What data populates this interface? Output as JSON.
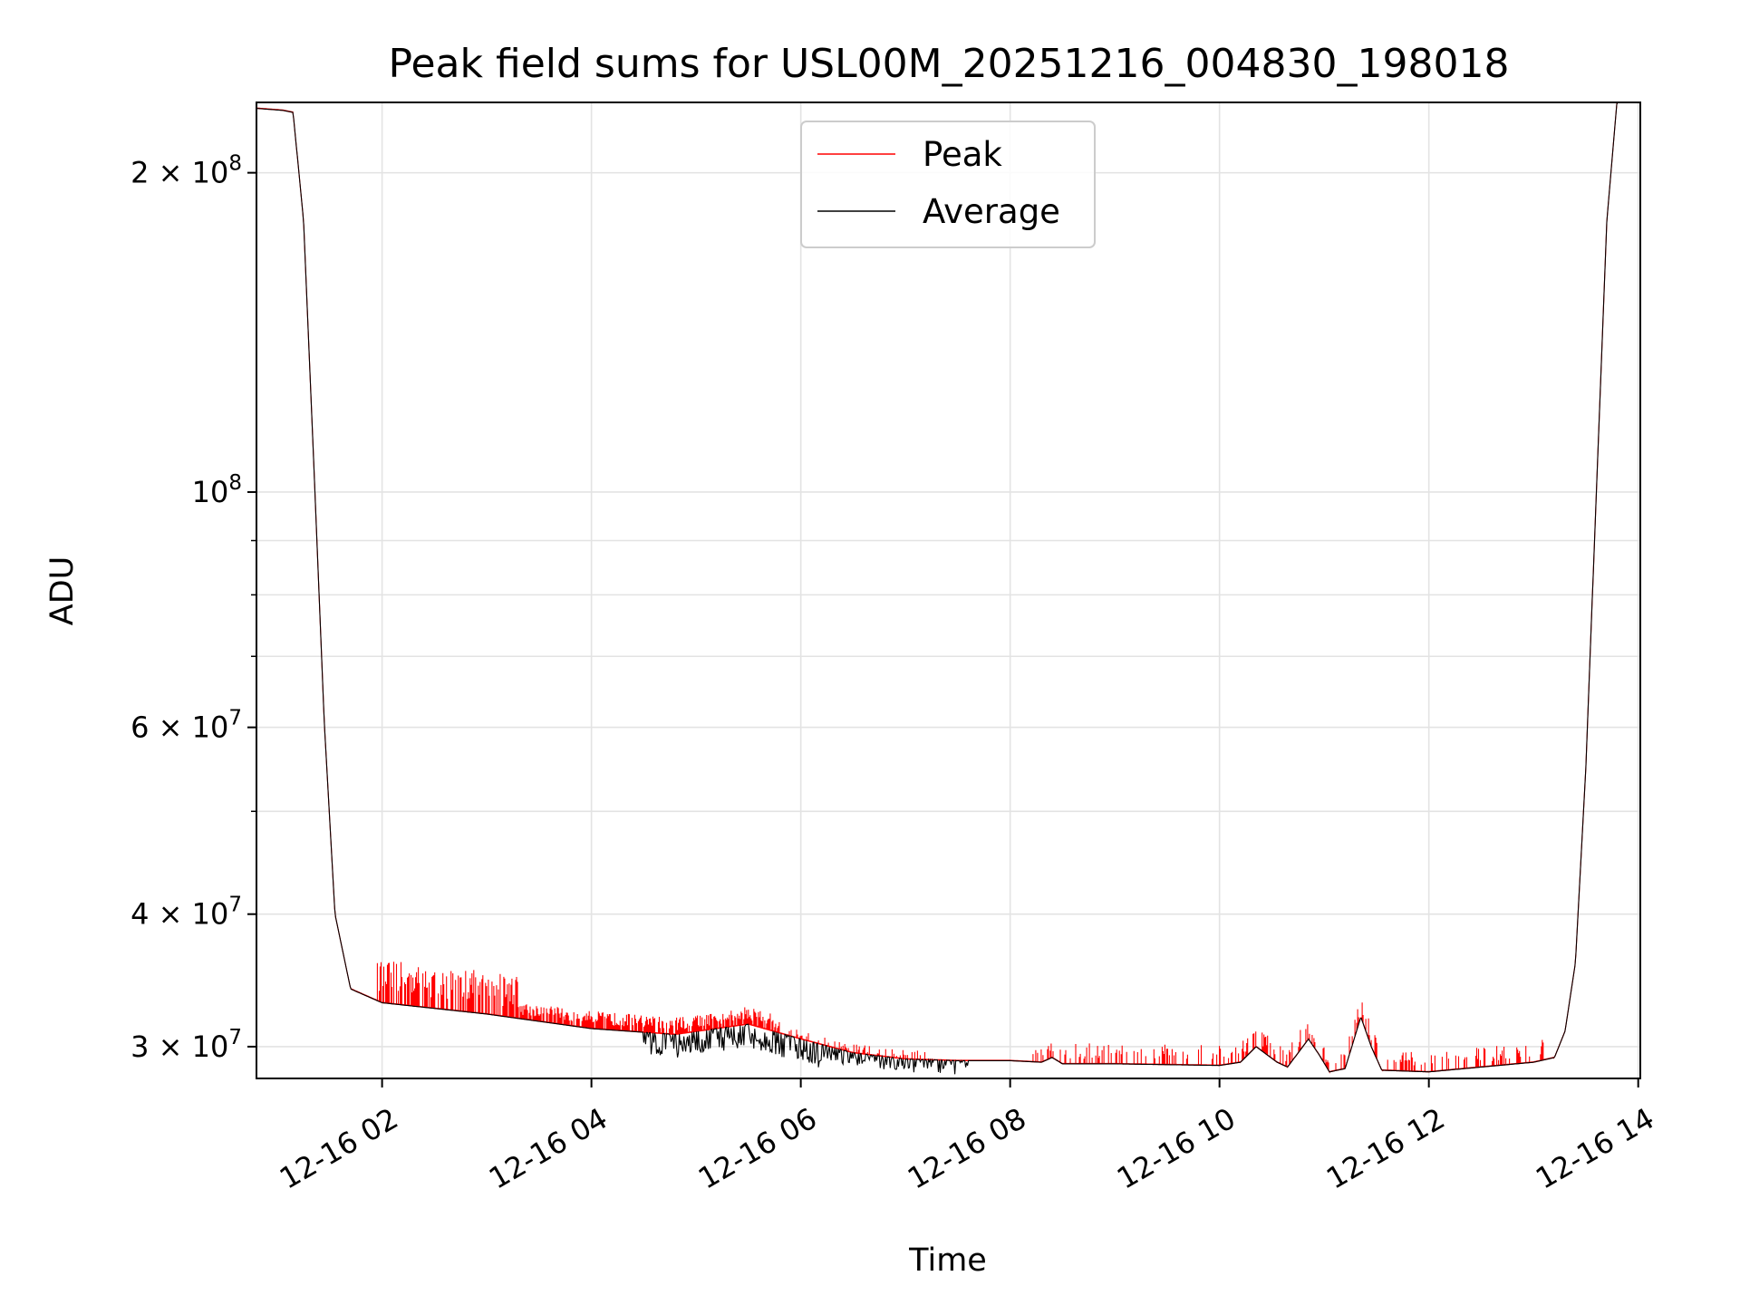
{
  "chart_data": {
    "type": "line",
    "title": "Peak field sums for USL00M_20251216_004830_198018",
    "xlabel": "Time",
    "ylabel": "ADU",
    "yscale": "log",
    "xlim_hours": [
      0.8,
      14.02
    ],
    "ylim": [
      28000000,
      233000000
    ],
    "grid": true,
    "legend_position": "top-center",
    "x_tick_labels": [
      {
        "hour": 2,
        "label": "12-16 02"
      },
      {
        "hour": 4,
        "label": "12-16 04"
      },
      {
        "hour": 6,
        "label": "12-16 06"
      },
      {
        "hour": 8,
        "label": "12-16 08"
      },
      {
        "hour": 10,
        "label": "12-16 10"
      },
      {
        "hour": 12,
        "label": "12-16 12"
      },
      {
        "hour": 14,
        "label": "12-16 14"
      }
    ],
    "y_major_ticks": [
      {
        "value": 200000000,
        "mant": "2",
        "sep": "×",
        "base": "10",
        "exp": "8"
      },
      {
        "value": 100000000,
        "mant": "",
        "sep": "",
        "base": "10",
        "exp": "8"
      },
      {
        "value": 60000000,
        "mant": "6",
        "sep": "×",
        "base": "10",
        "exp": "7"
      },
      {
        "value": 40000000,
        "mant": "4",
        "sep": "×",
        "base": "10",
        "exp": "7"
      },
      {
        "value": 30000000,
        "mant": "3",
        "sep": "×",
        "base": "10",
        "exp": "7"
      }
    ],
    "y_minor_ticks": [
      90000000,
      80000000,
      70000000,
      50000000
    ],
    "series": [
      {
        "name": "Peak",
        "color": "#ff0000",
        "spike_regions": [
          {
            "start": 1.95,
            "end": 3.3,
            "amp": 0.075,
            "density": 0.6
          },
          {
            "start": 3.3,
            "end": 5.8,
            "amp": 0.03,
            "density": 0.8
          },
          {
            "start": 5.8,
            "end": 7.2,
            "amp": 0.015,
            "density": 0.3
          },
          {
            "start": 8.2,
            "end": 13.1,
            "amp": 0.035,
            "density": 0.35
          }
        ]
      },
      {
        "name": "Average",
        "color": "#000000",
        "dip_regions": [
          {
            "start": 4.5,
            "end": 6.2,
            "amp": 0.05,
            "density": 0.7
          },
          {
            "start": 6.2,
            "end": 7.6,
            "amp": 0.03,
            "density": 0.5
          }
        ]
      }
    ],
    "baseline": [
      [
        0.8,
        230000000
      ],
      [
        1.05,
        229000000
      ],
      [
        1.15,
        228000000
      ],
      [
        1.25,
        180000000
      ],
      [
        1.35,
        105000000
      ],
      [
        1.45,
        60000000
      ],
      [
        1.55,
        40000000
      ],
      [
        1.7,
        34000000
      ],
      [
        2.0,
        33000000
      ],
      [
        3.0,
        32200000
      ],
      [
        4.0,
        31200000
      ],
      [
        4.8,
        30800000
      ],
      [
        5.2,
        31200000
      ],
      [
        5.5,
        31500000
      ],
      [
        6.0,
        30500000
      ],
      [
        6.5,
        29600000
      ],
      [
        7.0,
        29200000
      ],
      [
        7.5,
        29100000
      ],
      [
        8.0,
        29100000
      ],
      [
        8.3,
        29000000
      ],
      [
        8.4,
        29300000
      ],
      [
        8.5,
        28900000
      ],
      [
        9.0,
        28900000
      ],
      [
        10.0,
        28800000
      ],
      [
        10.2,
        29000000
      ],
      [
        10.35,
        30000000
      ],
      [
        10.55,
        29000000
      ],
      [
        10.65,
        28700000
      ],
      [
        10.85,
        30500000
      ],
      [
        10.95,
        29500000
      ],
      [
        11.05,
        28400000
      ],
      [
        11.2,
        28600000
      ],
      [
        11.35,
        32000000
      ],
      [
        11.45,
        30000000
      ],
      [
        11.55,
        28500000
      ],
      [
        12.0,
        28400000
      ],
      [
        12.5,
        28700000
      ],
      [
        13.0,
        29000000
      ],
      [
        13.2,
        29300000
      ],
      [
        13.3,
        31000000
      ],
      [
        13.4,
        36000000
      ],
      [
        13.5,
        55000000
      ],
      [
        13.6,
        100000000
      ],
      [
        13.7,
        180000000
      ],
      [
        13.8,
        235000000
      ]
    ]
  }
}
